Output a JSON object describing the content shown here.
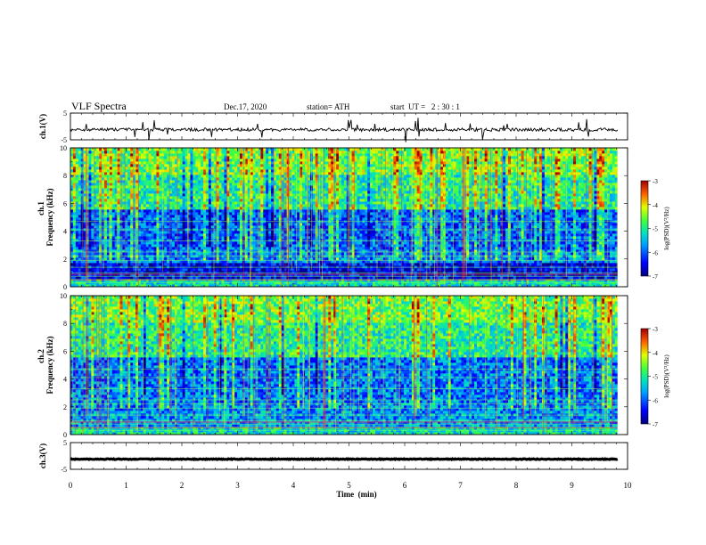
{
  "header": {
    "title": "VLF Spectra",
    "date": "Dec.17, 2020",
    "station": "station= ATH",
    "start": "start  UT =   2 : 30 : 1"
  },
  "chart_data": {
    "type": "heatmap",
    "time_axis": {
      "label": "Time  (min)",
      "range": [
        0,
        10
      ],
      "ticks": [
        "0",
        "1",
        "2",
        "3",
        "4",
        "5",
        "6",
        "7",
        "8",
        "9",
        "10"
      ],
      "data_end": 9.82
    },
    "panels": [
      {
        "id": "ch1-waveform",
        "kind": "line",
        "ylabel": "ch.1(V)",
        "ylim": [
          -5,
          5
        ],
        "yticks": [
          "5",
          "-5"
        ],
        "baseline": -1.2
      },
      {
        "id": "ch1-spectrogram",
        "kind": "spectrogram",
        "ylabel": "Frequency (kHz)",
        "ylabel_prefix": "ch.1",
        "ylim": [
          0,
          10
        ],
        "yticks": [
          "0",
          "2",
          "4",
          "6",
          "8",
          "10"
        ],
        "colorbar": {
          "label": "log(PSD)(V²/Hz)",
          "range": [
            -7,
            -3
          ],
          "ticks": [
            "-3",
            "-4",
            "-5",
            "-6",
            "-7"
          ]
        }
      },
      {
        "id": "ch2-spectrogram",
        "kind": "spectrogram",
        "ylabel": "Frequency (kHz)",
        "ylabel_prefix": "ch.2",
        "ylim": [
          0,
          10
        ],
        "yticks": [
          "0",
          "2",
          "4",
          "6",
          "8",
          "10"
        ],
        "colorbar": {
          "label": "log(PSD)(V²/Hz)",
          "range": [
            -7,
            -3
          ],
          "ticks": [
            "-3",
            "-4",
            "-5",
            "-6",
            "-7"
          ]
        }
      },
      {
        "id": "ch3-waveform",
        "kind": "line",
        "ylabel": "ch.3(V)",
        "ylim": [
          -5,
          5
        ],
        "yticks": [
          "5",
          "-5"
        ],
        "baseline": -1.2
      }
    ]
  }
}
